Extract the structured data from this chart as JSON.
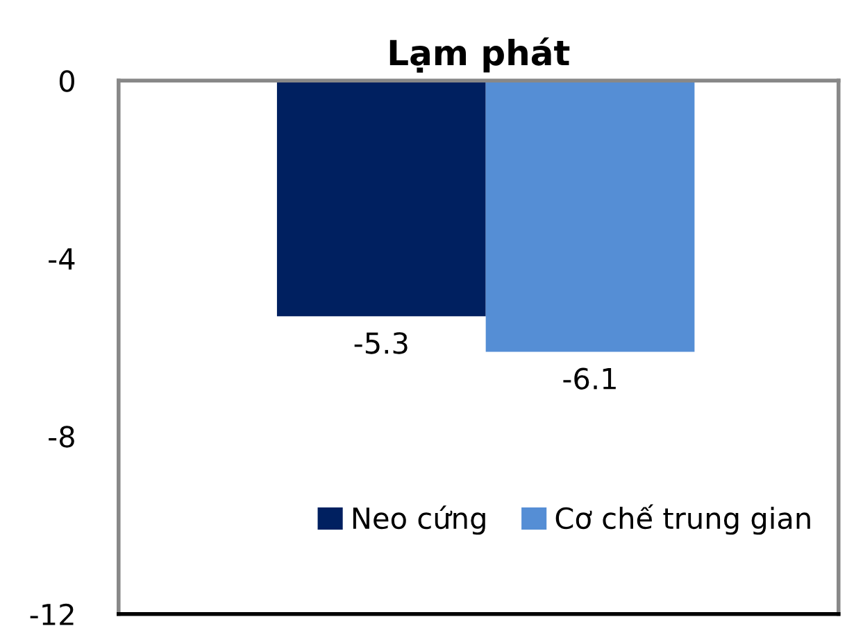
{
  "chart_data": {
    "type": "bar",
    "title": "Lạm phát",
    "categories": [
      null
    ],
    "series": [
      {
        "name": "Neo cứng",
        "color": "#002060",
        "values": [
          -5.3
        ]
      },
      {
        "name": "Cơ chế trung gian",
        "color": "#558ed5",
        "values": [
          -6.1
        ]
      }
    ],
    "ylim": [
      -12,
      0
    ],
    "yticks": [
      0,
      -4,
      -8,
      -12
    ],
    "data_labels": true,
    "grid": false,
    "legend": "bottom right"
  }
}
